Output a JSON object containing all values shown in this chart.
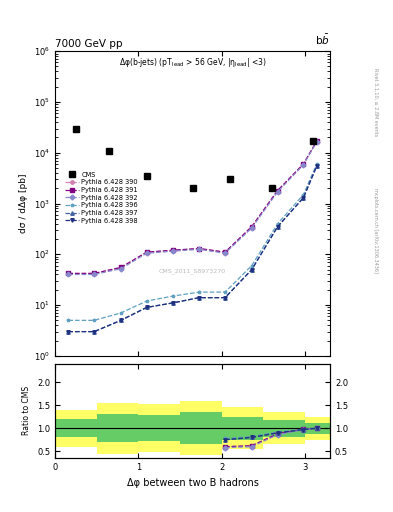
{
  "title_left": "7000 GeV pp",
  "title_right": "b$\\bar{b}$",
  "annotation": "Δφ(b-jets) (pT$_{\\mathrm{lead}}$ > 56 GeV, |η$_{\\mathrm{lead}}$| <3)",
  "watermark": "CMS_2011_S8973270",
  "right_label_top": "Rivet 3.1.10, ≥ 2.8M events",
  "right_label_bottom": "mcplots.cern.ch [arXiv:1306.3436]",
  "xlabel": "Δφ between two B hadrons",
  "ylabel_main": "dσ / dΔφ [pb]",
  "ylabel_ratio": "Ratio to CMS",
  "cms_x": [
    0.25,
    0.65,
    1.1,
    1.65,
    2.1,
    2.6,
    3.1
  ],
  "cms_y": [
    30000,
    11000,
    3500,
    2000,
    3000,
    2000,
    17000
  ],
  "pythia_x": [
    0.16,
    0.47,
    0.79,
    1.1,
    1.41,
    1.73,
    2.04,
    2.36,
    2.67,
    2.98,
    3.14
  ],
  "p390_y": [
    42,
    42,
    55,
    110,
    120,
    130,
    110,
    350,
    1800,
    6000,
    17000
  ],
  "p391_y": [
    42,
    42,
    55,
    110,
    120,
    130,
    110,
    350,
    1800,
    6000,
    17000
  ],
  "p392_y": [
    40,
    40,
    52,
    105,
    115,
    125,
    105,
    330,
    1700,
    5800,
    16500
  ],
  "p396_y": [
    5,
    5,
    7,
    12,
    15,
    18,
    18,
    60,
    400,
    1500,
    6000
  ],
  "p397_y": [
    3,
    3,
    5,
    9,
    11,
    14,
    14,
    50,
    350,
    1300,
    5500
  ],
  "p398_y": [
    3,
    3,
    5,
    9,
    11,
    14,
    14,
    50,
    350,
    1300,
    5500
  ],
  "ratio_x": [
    2.04,
    2.36,
    2.67,
    2.98,
    3.14
  ],
  "ratio_p390": [
    0.6,
    0.62,
    0.88,
    0.98,
    1.0
  ],
  "ratio_p391": [
    0.6,
    0.62,
    0.88,
    0.98,
    1.0
  ],
  "ratio_p392": [
    0.58,
    0.6,
    0.86,
    0.97,
    1.0
  ],
  "ratio_p396": [
    0.78,
    0.82,
    0.92,
    0.98,
    1.0
  ],
  "ratio_p397": [
    0.75,
    0.8,
    0.9,
    0.97,
    1.0
  ],
  "ratio_p398": [
    0.75,
    0.8,
    0.9,
    0.97,
    1.0
  ],
  "band_edges": [
    0.0,
    0.5,
    1.0,
    1.5,
    2.0,
    2.5,
    3.0,
    3.3
  ],
  "band_green_lo": [
    0.8,
    0.7,
    0.72,
    0.65,
    0.75,
    0.82,
    0.88
  ],
  "band_green_hi": [
    1.2,
    1.3,
    1.28,
    1.35,
    1.25,
    1.18,
    1.12
  ],
  "band_yellow_lo": [
    0.6,
    0.45,
    0.48,
    0.42,
    0.55,
    0.65,
    0.75
  ],
  "band_yellow_hi": [
    1.4,
    1.55,
    1.52,
    1.58,
    1.45,
    1.35,
    1.25
  ],
  "colors": {
    "p390": "#d080b0",
    "p391": "#800080",
    "p392": "#8888cc",
    "p396": "#60a0c0",
    "p397": "#4060a0",
    "p398": "#203080"
  },
  "markers": {
    "p390": "o",
    "p391": "s",
    "p392": "D",
    "p396": "*",
    "p397": "^",
    "p398": "v"
  },
  "labels": {
    "p390": "Pythia 6.428 390",
    "p391": "Pythia 6.428 391",
    "p392": "Pythia 6.428 392",
    "p396": "Pythia 6.428 396",
    "p397": "Pythia 6.428 397",
    "p398": "Pythia 6.428 398"
  },
  "ylim_main": [
    1,
    1000000
  ],
  "ylim_ratio": [
    0.35,
    2.4
  ],
  "xlim": [
    0,
    3.3
  ],
  "ratio_yticks": [
    0.5,
    1.0,
    1.5,
    2.0
  ]
}
